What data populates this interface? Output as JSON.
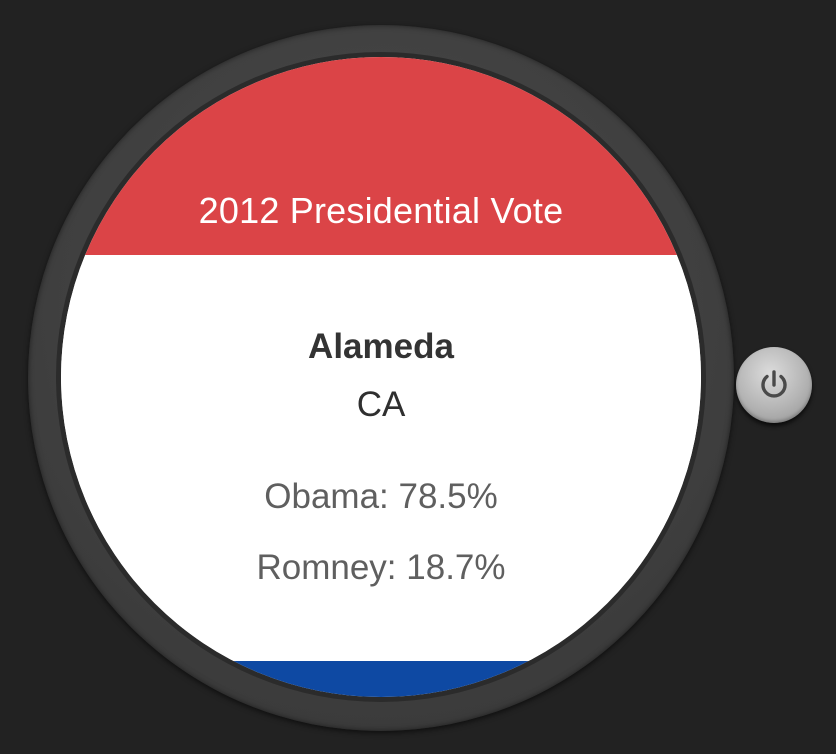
{
  "watch": {
    "header": {
      "title": "2012 Presidential Vote"
    },
    "location": {
      "county": "Alameda",
      "state": "CA"
    },
    "results": [
      {
        "label": "Obama: 78.5%"
      },
      {
        "label": "Romney: 18.7%"
      }
    ]
  },
  "colors": {
    "header_red": "#db4447",
    "footer_blue": "#0e49a3",
    "background": "#222222"
  },
  "icons": {
    "power": "power-icon"
  }
}
